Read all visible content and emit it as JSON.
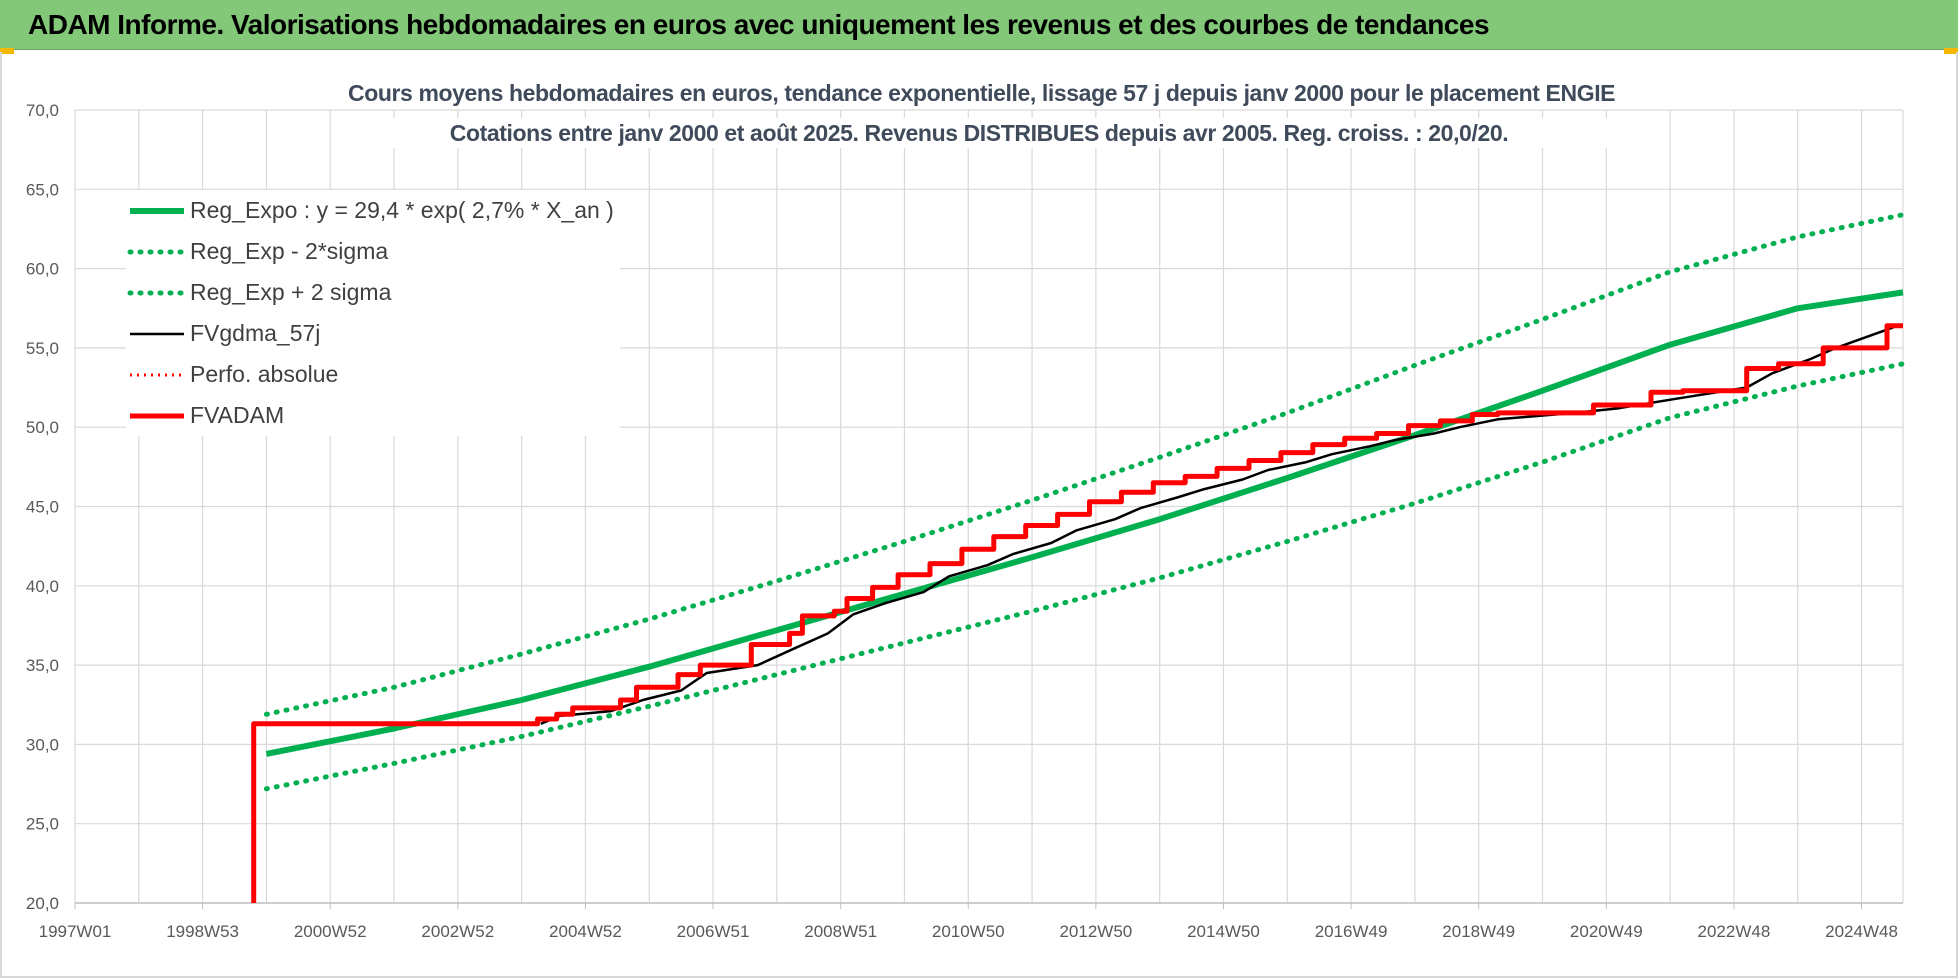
{
  "app": {
    "title": "ADAM Informe. Valorisations hebdomadaires en euros avec uniquement les revenus et des courbes de tendances"
  },
  "colors": {
    "title_bar": "#82c878",
    "green_series": "#00b050",
    "red_series": "#ff0000",
    "black_series": "#000000",
    "title_text": "#3f4a5a",
    "grid": "#d9d9d9"
  },
  "chart_data": {
    "type": "line",
    "title": "Cours moyens hebdomadaires en euros, tendance exponentielle, lissage 57 j depuis janv 2000  pour le placement ENGIE",
    "subtitle": "Cotations entre janv 2000 et août 2025.  Revenus DISTRIBUES depuis avr 2005. Reg. croiss. : 20,0/20.",
    "xlabel": "",
    "ylabel": "",
    "x_tick_labels": [
      "1997W01",
      "1998W53",
      "2000W52",
      "2002W52",
      "2004W52",
      "2006W51",
      "2008W51",
      "2010W50",
      "2012W50",
      "2014W50",
      "2016W49",
      "2018W49",
      "2020W49",
      "2022W48",
      "2024W48"
    ],
    "x_range": [
      "1997W01",
      "2025W35"
    ],
    "y_tick_labels": [
      "20,0",
      "25,0",
      "30,0",
      "35,0",
      "40,0",
      "45,0",
      "50,0",
      "55,0",
      "60,0",
      "65,0",
      "70,0"
    ],
    "ylim": [
      20,
      70
    ],
    "y_ticks": [
      20,
      25,
      30,
      35,
      40,
      45,
      50,
      55,
      60,
      65,
      70
    ],
    "grid": true,
    "legend_position": "top-left",
    "series": [
      {
        "name": "Reg_Expo : y = 29,4 * exp( 2,7% *  X_an )",
        "style": "solid-green",
        "x": [
          2000.0,
          2002.0,
          2004.0,
          2006.0,
          2008.0,
          2010.0,
          2012.0,
          2014.0,
          2016.0,
          2018.0,
          2020.0,
          2022.0,
          2024.0,
          2025.65
        ],
        "y": [
          29.4,
          31.0,
          32.8,
          34.9,
          37.2,
          39.5,
          41.8,
          44.2,
          46.8,
          49.5,
          52.3,
          55.2,
          57.5,
          58.5
        ]
      },
      {
        "name": "Reg_Exp - 2*sigma",
        "style": "dotted-green",
        "x": [
          2000.0,
          2002.0,
          2004.0,
          2006.0,
          2008.0,
          2010.0,
          2012.0,
          2014.0,
          2016.0,
          2018.0,
          2020.0,
          2022.0,
          2024.0,
          2025.65
        ],
        "y": [
          27.2,
          28.8,
          30.5,
          32.4,
          34.4,
          36.4,
          38.4,
          40.5,
          42.8,
          45.2,
          47.8,
          50.6,
          52.6,
          54.0
        ]
      },
      {
        "name": "Reg_Exp + 2 sigma",
        "style": "dotted-green",
        "x": [
          2000.0,
          2002.0,
          2004.0,
          2006.0,
          2008.0,
          2010.0,
          2012.0,
          2014.0,
          2016.0,
          2018.0,
          2020.0,
          2022.0,
          2024.0,
          2025.65
        ],
        "y": [
          31.9,
          33.6,
          35.7,
          37.9,
          40.3,
          42.8,
          45.4,
          48.1,
          50.9,
          53.9,
          56.8,
          59.8,
          62.0,
          63.4
        ]
      },
      {
        "name": "FVgdma_57j",
        "style": "solid-black",
        "x": [
          2004.3,
          2004.6,
          2005.4,
          2005.9,
          2006.5,
          2006.9,
          2007.7,
          2008.3,
          2008.8,
          2009.2,
          2009.7,
          2010.3,
          2010.7,
          2011.3,
          2011.7,
          2012.3,
          2012.7,
          2013.3,
          2013.7,
          2014.3,
          2014.7,
          2015.3,
          2015.7,
          2016.3,
          2016.7,
          2017.3,
          2017.7,
          2018.3,
          2018.7,
          2019.3,
          2020.5,
          2021.2,
          2022.1,
          2023.2,
          2023.6,
          2024.2,
          2024.6,
          2025.5
        ],
        "y": [
          31.3,
          31.8,
          32.1,
          32.8,
          33.4,
          34.5,
          35.0,
          36.1,
          37.0,
          38.2,
          38.9,
          39.6,
          40.6,
          41.3,
          42.0,
          42.7,
          43.5,
          44.2,
          44.9,
          45.6,
          46.1,
          46.7,
          47.3,
          47.8,
          48.3,
          48.8,
          49.2,
          49.6,
          50.0,
          50.5,
          50.9,
          51.2,
          51.8,
          52.5,
          53.4,
          54.3,
          55.0,
          56.3
        ]
      },
      {
        "name": "Perfo. absolue",
        "style": "dotted-red",
        "x": [],
        "y": []
      },
      {
        "name": "FVADAM",
        "style": "solid-red-step",
        "x": [
          1999.8,
          1999.8,
          2004.25,
          2004.25,
          2004.55,
          2004.55,
          2004.8,
          2004.8,
          2005.55,
          2005.55,
          2005.8,
          2005.8,
          2006.45,
          2006.45,
          2006.8,
          2006.8,
          2007.6,
          2007.6,
          2008.2,
          2008.2,
          2008.4,
          2008.4,
          2008.9,
          2008.9,
          2009.1,
          2009.1,
          2009.5,
          2009.5,
          2009.9,
          2009.9,
          2010.4,
          2010.4,
          2010.9,
          2010.9,
          2011.4,
          2011.4,
          2011.9,
          2011.9,
          2012.4,
          2012.4,
          2012.9,
          2012.9,
          2013.4,
          2013.4,
          2013.9,
          2013.9,
          2014.4,
          2014.4,
          2014.9,
          2014.9,
          2015.4,
          2015.4,
          2015.9,
          2015.9,
          2016.4,
          2016.4,
          2016.9,
          2016.9,
          2017.4,
          2017.4,
          2017.9,
          2017.9,
          2018.4,
          2018.4,
          2018.9,
          2018.9,
          2019.3,
          2019.3,
          2020.8,
          2020.8,
          2021.7,
          2021.7,
          2022.2,
          2022.2,
          2023.2,
          2023.2,
          2023.7,
          2023.7,
          2024.4,
          2024.4,
          2025.4,
          2025.4,
          2025.65
        ],
        "y": [
          20.0,
          31.3,
          31.3,
          31.6,
          31.6,
          31.9,
          31.9,
          32.3,
          32.3,
          32.8,
          32.8,
          33.6,
          33.6,
          34.4,
          34.4,
          35.0,
          35.0,
          36.3,
          36.3,
          37.0,
          37.0,
          38.1,
          38.1,
          38.4,
          38.4,
          39.2,
          39.2,
          39.9,
          39.9,
          40.7,
          40.7,
          41.4,
          41.4,
          42.3,
          42.3,
          43.1,
          43.1,
          43.8,
          43.8,
          44.5,
          44.5,
          45.3,
          45.3,
          45.9,
          45.9,
          46.5,
          46.5,
          46.9,
          46.9,
          47.4,
          47.4,
          47.9,
          47.9,
          48.4,
          48.4,
          48.9,
          48.9,
          49.3,
          49.3,
          49.6,
          49.6,
          50.1,
          50.1,
          50.4,
          50.4,
          50.8,
          50.8,
          50.9,
          50.9,
          51.4,
          51.4,
          52.2,
          52.2,
          52.3,
          52.3,
          53.7,
          53.7,
          54.0,
          54.0,
          55.0,
          55.0,
          56.4,
          56.4
        ]
      }
    ]
  }
}
